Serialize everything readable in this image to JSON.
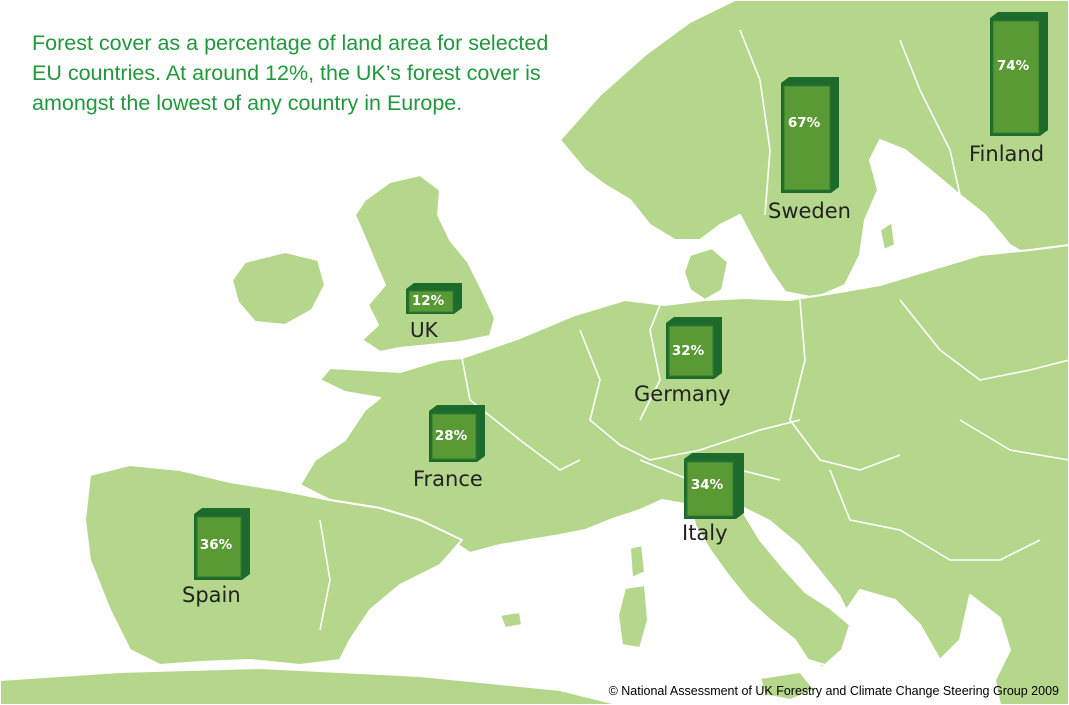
{
  "caption": {
    "line1": "Forest cover as a percentage of land area for selected",
    "line2": "EU countries. At around 12%, the UK’s forest cover is",
    "line3": "amongst the lowest of any country in Europe."
  },
  "countries": [
    {
      "name": "Finland",
      "label": "74%",
      "value": 74
    },
    {
      "name": "Sweden",
      "label": "67%",
      "value": 67
    },
    {
      "name": "UK",
      "label": "12%",
      "value": 12
    },
    {
      "name": "Germany",
      "label": "32%",
      "value": 32
    },
    {
      "name": "France",
      "label": "28%",
      "value": 28
    },
    {
      "name": "Italy",
      "label": "34%",
      "value": 34
    },
    {
      "name": "Spain",
      "label": "36%",
      "value": 36
    }
  ],
  "colors": {
    "land": "#b5d78b",
    "sea": "#ffffff",
    "bar_face": "#5a9a35",
    "bar_side": "#1c6b2c",
    "caption_text": "#1f9a3b"
  },
  "copyright": "© National Assessment of UK Forestry and Climate Change Steering Group 2009"
}
